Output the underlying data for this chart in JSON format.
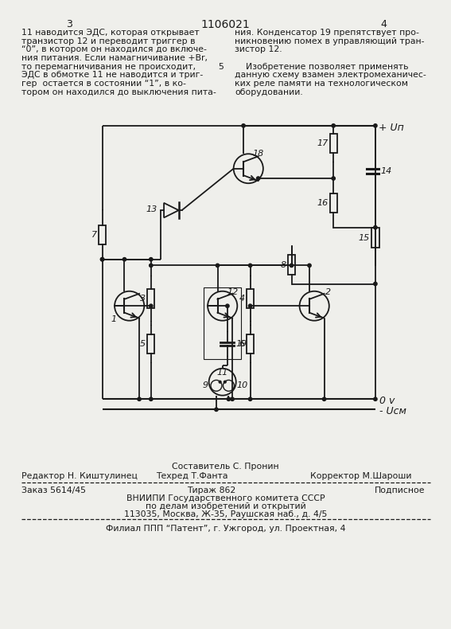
{
  "page_width": 7.07,
  "page_height": 10.0,
  "background_color": "#efefeb",
  "page_number_left": "3",
  "page_number_right": "4",
  "patent_number": "1106021",
  "col_left_text": [
    "11 наводится ЭДС, которая открывает",
    "транзистор 12 и переводит триггер в",
    "“0”, в котором он находился до включе-",
    "ния питания. Если намагничивание +Br,",
    "то перемагничивания не происходит,",
    "ЭДС в обмотке 11 не наводится и триг-",
    "гер  остается в состоянии “1”, в ко-",
    "тором он находился до выключения пита-"
  ],
  "col_right_text": [
    "ния. Конденсатор 19 препятствует про-",
    "никновению помех в управляющий тран-",
    "зистор 12.",
    "",
    "    Изобретение позволяет применять",
    "данную схему взамен электромеханичес-",
    "ких реле памяти на технологическом",
    "оборудовании."
  ],
  "line_5_marker": "5",
  "footer_composer": "Составитель С. Пронин",
  "footer_editor": "Редактор Н. Киштулинец",
  "footer_techred": "Техред Т.Фанта",
  "footer_corrector": "Корректор М.Шароши",
  "footer_order": "Заказ 5614/45",
  "footer_tirazh": "Тираж 862",
  "footer_podpisnoe": "Подписное",
  "footer_vniiipi": "ВНИИПИ Государственного комитета СССР",
  "footer_po_delam": "по делам изобретений и открытий",
  "footer_address": "113035, Москва, Ж-35, Раушская наб., д. 4/5",
  "footer_filial": "Филиал ППП “Патент”, г. Ужгород, ул. Проектная, 4",
  "text_color": "#1a1a1a",
  "line_color": "#1a1a1a"
}
